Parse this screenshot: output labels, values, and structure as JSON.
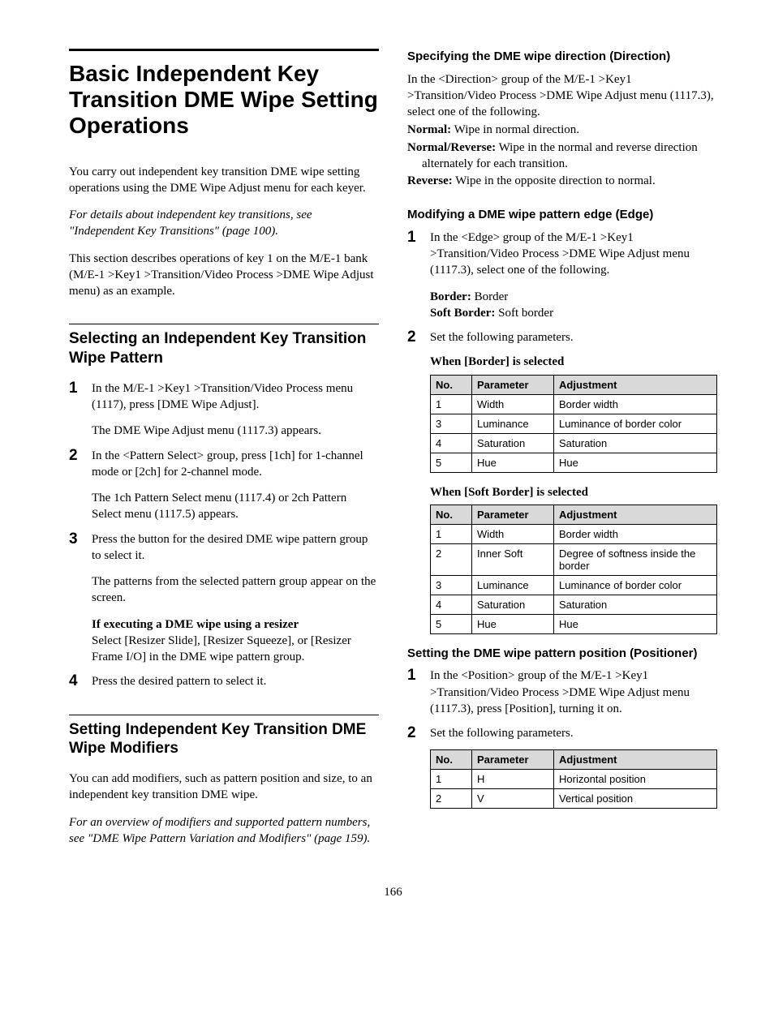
{
  "page_number": "166",
  "left": {
    "main_title": "Basic Independent Key Transition DME Wipe Setting Operations",
    "intro1": "You carry out independent key transition DME wipe setting operations using the DME Wipe Adjust menu for each keyer.",
    "intro2": "For details about independent key transitions, see \"Independent Key Transitions\" (page 100).",
    "intro3": "This section describes operations of key 1 on the M/E-1 bank (M/E-1 >Key1 >Transition/Video Process >DME Wipe Adjust menu) as an example.",
    "h2a": "Selecting an Independent Key Transition Wipe Pattern",
    "s1": {
      "a": "In the M/E-1 >Key1 >Transition/Video Process menu (1117), press [DME Wipe Adjust].",
      "b": "The DME Wipe Adjust menu (1117.3) appears."
    },
    "s2": {
      "a": "In the <Pattern Select> group, press [1ch] for 1-channel mode or [2ch] for 2-channel mode.",
      "b": "The 1ch Pattern Select menu (1117.4) or 2ch Pattern Select menu (1117.5) appears."
    },
    "s3": {
      "a": "Press the button for the desired DME wipe pattern group to select it.",
      "b": "The patterns from the selected pattern group appear on the screen.",
      "c_bold": "If executing a DME wipe using a resizer",
      "c": "Select [Resizer Slide], [Resizer Squeeze], or [Resizer Frame I/O] in the DME wipe pattern group."
    },
    "s4": "Press the desired pattern to select it.",
    "h2b": "Setting Independent Key Transition DME Wipe Modifiers",
    "mod1": "You can add modifiers, such as pattern position and size, to an independent key transition DME wipe.",
    "mod2": "For an overview of modifiers and supported pattern numbers, see \"DME Wipe Pattern Variation and Modifiers\" (page 159)."
  },
  "right": {
    "h3a": "Specifying the DME wipe direction (Direction)",
    "dir_intro": "In the <Direction> group of the M/E-1 >Key1 >Transition/Video Process >DME Wipe Adjust menu (1117.3), select one of the following.",
    "dir_defs": {
      "normal_label": "Normal:",
      "normal": " Wipe in normal direction.",
      "nr_label": "Normal/Reverse:",
      "nr": " Wipe in the normal and reverse direction alternately for each transition.",
      "rev_label": "Reverse:",
      "rev": " Wipe in the opposite direction to normal."
    },
    "h3b": "Modifying a DME wipe pattern edge (Edge)",
    "edge_s1": "In the <Edge> group of the M/E-1 >Key1 >Transition/Video Process >DME Wipe Adjust menu (1117.3), select one of the following.",
    "edge_defs": {
      "border_label": "Border:",
      "border": " Border",
      "soft_label": "Soft Border:",
      "soft": " Soft border"
    },
    "edge_s2": "Set the following parameters.",
    "tbl_border_caption": "When [Border] is selected",
    "tbl_headers": {
      "no": "No.",
      "param": "Parameter",
      "adj": "Adjustment"
    },
    "tbl_border": [
      {
        "no": "1",
        "param": "Width",
        "adj": "Border width"
      },
      {
        "no": "3",
        "param": "Luminance",
        "adj": "Luminance of border color"
      },
      {
        "no": "4",
        "param": "Saturation",
        "adj": "Saturation"
      },
      {
        "no": "5",
        "param": "Hue",
        "adj": "Hue"
      }
    ],
    "tbl_soft_caption": "When [Soft Border] is selected",
    "tbl_soft": [
      {
        "no": "1",
        "param": "Width",
        "adj": "Border width"
      },
      {
        "no": "2",
        "param": "Inner Soft",
        "adj": "Degree of softness inside the border"
      },
      {
        "no": "3",
        "param": "Luminance",
        "adj": "Luminance of border color"
      },
      {
        "no": "4",
        "param": "Saturation",
        "adj": "Saturation"
      },
      {
        "no": "5",
        "param": "Hue",
        "adj": "Hue"
      }
    ],
    "h3c": "Setting the DME wipe pattern position (Positioner)",
    "pos_s1": "In the <Position> group of the M/E-1 >Key1 >Transition/Video Process >DME Wipe Adjust menu (1117.3), press [Position], turning it on.",
    "pos_s2": "Set the following parameters.",
    "tbl_pos": [
      {
        "no": "1",
        "param": "H",
        "adj": "Horizontal position"
      },
      {
        "no": "2",
        "param": "V",
        "adj": "Vertical position"
      }
    ]
  }
}
